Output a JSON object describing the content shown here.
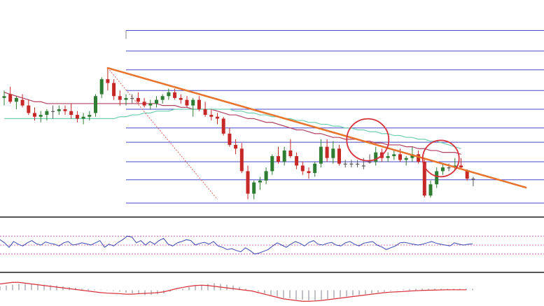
{
  "colors": {
    "background": "#ffffff",
    "bull_candle": "#2e7d32",
    "bear_candle": "#c62828",
    "doji_candle": "#555555",
    "trendline": "#e8732a",
    "fib_lines": "#4848c8",
    "ma_slow": "#b04060",
    "ma_fast": "#6fcfb0",
    "fib_trend": "#e06060",
    "circle": "#d8303a",
    "rsi_line": "#3a48b0",
    "rsi_levels": "#cc44aa",
    "macd_histogram": "#c0c0c8",
    "macd_signal": "#d8303a",
    "panel_divider": "#555555"
  },
  "chart_data": [
    {
      "type": "candlestick",
      "panel": "price",
      "title": "",
      "xlabel": "",
      "ylabel": "",
      "grid": false,
      "ylim": [
        0,
        100
      ],
      "candles": [
        {
          "o": 56,
          "h": 60,
          "l": 52,
          "c": 57
        },
        {
          "o": 58,
          "h": 62,
          "l": 53,
          "c": 54
        },
        {
          "o": 54,
          "h": 57,
          "l": 50,
          "c": 56
        },
        {
          "o": 55,
          "h": 58,
          "l": 51,
          "c": 52
        },
        {
          "o": 52,
          "h": 55,
          "l": 47,
          "c": 48
        },
        {
          "o": 48,
          "h": 51,
          "l": 44,
          "c": 46
        },
        {
          "o": 46,
          "h": 49,
          "l": 43,
          "c": 47
        },
        {
          "o": 47,
          "h": 50,
          "l": 44,
          "c": 49
        },
        {
          "o": 49,
          "h": 52,
          "l": 45,
          "c": 49
        },
        {
          "o": 49,
          "h": 52,
          "l": 47,
          "c": 50
        },
        {
          "o": 50,
          "h": 52,
          "l": 47,
          "c": 49
        },
        {
          "o": 49,
          "h": 53,
          "l": 45,
          "c": 47
        },
        {
          "o": 47,
          "h": 49,
          "l": 43,
          "c": 45
        },
        {
          "o": 45,
          "h": 48,
          "l": 42,
          "c": 46
        },
        {
          "o": 46,
          "h": 49,
          "l": 44,
          "c": 47
        },
        {
          "o": 48,
          "h": 58,
          "l": 46,
          "c": 57
        },
        {
          "o": 58,
          "h": 67,
          "l": 56,
          "c": 66
        },
        {
          "o": 66,
          "h": 72,
          "l": 60,
          "c": 64
        },
        {
          "o": 64,
          "h": 66,
          "l": 55,
          "c": 57
        },
        {
          "o": 57,
          "h": 60,
          "l": 52,
          "c": 55
        },
        {
          "o": 55,
          "h": 58,
          "l": 52,
          "c": 56
        },
        {
          "o": 56,
          "h": 58,
          "l": 53,
          "c": 56
        },
        {
          "o": 56,
          "h": 59,
          "l": 53,
          "c": 54
        },
        {
          "o": 54,
          "h": 56,
          "l": 51,
          "c": 52
        },
        {
          "o": 52,
          "h": 55,
          "l": 50,
          "c": 53
        },
        {
          "o": 53,
          "h": 57,
          "l": 51,
          "c": 55
        },
        {
          "o": 55,
          "h": 58,
          "l": 53,
          "c": 57
        },
        {
          "o": 57,
          "h": 61,
          "l": 55,
          "c": 59
        },
        {
          "o": 59,
          "h": 61,
          "l": 55,
          "c": 56
        },
        {
          "o": 56,
          "h": 58,
          "l": 53,
          "c": 55
        },
        {
          "o": 55,
          "h": 57,
          "l": 51,
          "c": 52
        },
        {
          "o": 52,
          "h": 56,
          "l": 46,
          "c": 55
        },
        {
          "o": 55,
          "h": 57,
          "l": 49,
          "c": 50
        },
        {
          "o": 50,
          "h": 54,
          "l": 46,
          "c": 47
        },
        {
          "o": 47,
          "h": 50,
          "l": 44,
          "c": 46
        },
        {
          "o": 46,
          "h": 48,
          "l": 42,
          "c": 45
        },
        {
          "o": 45,
          "h": 46,
          "l": 36,
          "c": 37
        },
        {
          "o": 37,
          "h": 40,
          "l": 30,
          "c": 31
        },
        {
          "o": 31,
          "h": 34,
          "l": 26,
          "c": 29
        },
        {
          "o": 29,
          "h": 32,
          "l": 16,
          "c": 17
        },
        {
          "o": 17,
          "h": 20,
          "l": 2,
          "c": 5
        },
        {
          "o": 5,
          "h": 12,
          "l": 2,
          "c": 11
        },
        {
          "o": 11,
          "h": 14,
          "l": 7,
          "c": 12
        },
        {
          "o": 12,
          "h": 19,
          "l": 10,
          "c": 17
        },
        {
          "o": 17,
          "h": 26,
          "l": 15,
          "c": 25
        },
        {
          "o": 25,
          "h": 30,
          "l": 21,
          "c": 22
        },
        {
          "o": 22,
          "h": 30,
          "l": 20,
          "c": 28
        },
        {
          "o": 28,
          "h": 34,
          "l": 24,
          "c": 25
        },
        {
          "o": 25,
          "h": 27,
          "l": 18,
          "c": 20
        },
        {
          "o": 20,
          "h": 22,
          "l": 15,
          "c": 17
        },
        {
          "o": 17,
          "h": 19,
          "l": 13,
          "c": 16
        },
        {
          "o": 16,
          "h": 22,
          "l": 14,
          "c": 21
        },
        {
          "o": 21,
          "h": 34,
          "l": 19,
          "c": 30
        },
        {
          "o": 30,
          "h": 34,
          "l": 22,
          "c": 24
        },
        {
          "o": 24,
          "h": 33,
          "l": 21,
          "c": 29
        },
        {
          "o": 29,
          "h": 31,
          "l": 20,
          "c": 21
        },
        {
          "o": 21,
          "h": 23,
          "l": 19,
          "c": 21
        },
        {
          "o": 21,
          "h": 23,
          "l": 19,
          "c": 21
        },
        {
          "o": 21,
          "h": 23,
          "l": 19,
          "c": 21
        },
        {
          "o": 20,
          "h": 24,
          "l": 18,
          "c": 20
        },
        {
          "o": 22,
          "h": 26,
          "l": 21,
          "c": 22
        },
        {
          "o": 22,
          "h": 30,
          "l": 20,
          "c": 27
        },
        {
          "o": 27,
          "h": 29,
          "l": 22,
          "c": 24
        },
        {
          "o": 24,
          "h": 27,
          "l": 22,
          "c": 25
        },
        {
          "o": 25,
          "h": 28,
          "l": 23,
          "c": 26
        },
        {
          "o": 26,
          "h": 29,
          "l": 22,
          "c": 23
        },
        {
          "o": 23,
          "h": 25,
          "l": 20,
          "c": 24
        },
        {
          "o": 24,
          "h": 30,
          "l": 22,
          "c": 26
        },
        {
          "o": 26,
          "h": 28,
          "l": 21,
          "c": 22
        },
        {
          "o": 22,
          "h": 24,
          "l": 3,
          "c": 4
        },
        {
          "o": 4,
          "h": 12,
          "l": 3,
          "c": 10
        },
        {
          "o": 10,
          "h": 19,
          "l": 8,
          "c": 17
        },
        {
          "o": 17,
          "h": 21,
          "l": 15,
          "c": 19
        },
        {
          "o": 19,
          "h": 21,
          "l": 17,
          "c": 19
        },
        {
          "o": 19,
          "h": 24,
          "l": 18,
          "c": 20
        },
        {
          "o": 20,
          "h": 24,
          "l": 18,
          "c": 19
        },
        {
          "o": 17,
          "h": 18,
          "l": 12,
          "c": 13
        },
        {
          "o": 13,
          "h": 14,
          "l": 9,
          "c": 13
        }
      ],
      "series": [
        {
          "kind": "moving-average",
          "color_key": "ma_slow",
          "values": [
            59,
            58,
            57,
            56,
            55,
            54,
            54,
            53,
            53,
            53,
            53,
            53,
            53,
            53,
            53,
            53,
            53,
            53,
            53,
            53,
            53,
            53,
            53,
            53,
            53,
            53,
            52,
            52,
            52,
            51,
            51,
            50,
            50,
            50,
            50,
            49,
            48,
            47,
            47,
            46,
            45,
            45,
            44,
            43,
            43,
            42,
            41,
            40,
            39,
            39,
            38,
            37,
            37,
            36,
            35,
            35,
            34,
            34,
            34,
            33,
            33,
            32,
            32,
            31,
            31,
            31,
            30,
            30,
            29,
            29,
            28,
            28,
            27,
            27,
            27,
            26
          ]
        },
        {
          "kind": "moving-average",
          "color_key": "ma_fast",
          "values": [
            45,
            45,
            45,
            45,
            45,
            45,
            45,
            45,
            45,
            45,
            45,
            45,
            45,
            45,
            45,
            45,
            45,
            45,
            45,
            46,
            46,
            47,
            47,
            48,
            48,
            49,
            49,
            49,
            50,
            50,
            50,
            50,
            50,
            50,
            50,
            50,
            50,
            50,
            49,
            49,
            48,
            48,
            47,
            47,
            46,
            46,
            45,
            45,
            44,
            44,
            43,
            43,
            42,
            42,
            41,
            41,
            40,
            40,
            39,
            39,
            38,
            38,
            37,
            37,
            36,
            36,
            35,
            35,
            34,
            34,
            33,
            33,
            32,
            31,
            30,
            29
          ]
        }
      ],
      "trendline": {
        "start": {
          "index": 17,
          "value": 72
        },
        "end": {
          "index": 76,
          "value": 12
        }
      },
      "fib_levels": [
        0,
        12.4,
        22,
        32.4,
        40,
        50,
        60,
        71,
        81,
        92
      ],
      "fib_diagonal": {
        "start": {
          "index": 17,
          "value": 72
        },
        "end": {
          "index": 35,
          "value": 2
        }
      },
      "circled_points": [
        {
          "index": 59,
          "value": 30
        },
        {
          "index": 71,
          "value": 20
        }
      ]
    },
    {
      "type": "line",
      "panel": "rsi",
      "title": "",
      "grid": false,
      "ylim": [
        0,
        100
      ],
      "levels": [
        70,
        50,
        30
      ],
      "values": [
        62,
        55,
        45,
        58,
        52,
        48,
        55,
        60,
        53,
        50,
        57,
        54,
        52,
        48,
        55,
        58,
        50,
        52,
        55,
        53,
        50,
        55,
        60,
        45,
        52,
        48,
        56,
        62,
        70,
        68,
        55,
        60,
        50,
        58,
        52,
        60,
        65,
        52,
        48,
        55,
        58,
        62,
        60,
        50,
        54,
        56,
        52,
        58,
        48,
        45,
        40,
        42,
        38,
        35,
        44,
        38,
        30,
        32,
        36,
        40,
        48,
        55,
        50,
        45,
        52,
        58,
        54,
        48,
        56,
        60,
        52,
        50,
        54,
        56,
        50,
        48,
        55,
        58,
        52,
        48,
        54,
        56,
        58,
        50,
        46,
        40,
        44,
        48,
        55,
        56,
        54,
        52,
        50,
        52,
        55,
        58,
        54,
        52,
        50,
        48,
        55,
        52,
        50,
        52,
        53
      ]
    },
    {
      "type": "bar",
      "panel": "macd",
      "title": "",
      "grid": false,
      "ylim": [
        -10,
        10
      ],
      "histogram": [
        2.5,
        3,
        3.5,
        4,
        4,
        4,
        3.8,
        3.5,
        3.2,
        3,
        2.5,
        2,
        1.5,
        1,
        0.8,
        0.5,
        0.3,
        0,
        -0.5,
        -1,
        -1.5,
        -2,
        -2.5,
        -3,
        -3,
        -2.5,
        -2,
        -1,
        0,
        1,
        2,
        3,
        3.5,
        4,
        4.5,
        4,
        3.5,
        3,
        2,
        1,
        0,
        -1,
        -2,
        -3,
        -4,
        -5,
        -5,
        -6,
        -6,
        -6.5,
        -6.5,
        -6,
        -5.5,
        -5,
        -4.5,
        -4,
        -3.5,
        -3,
        -2.5,
        -2,
        -1.5,
        -1,
        -0.5,
        0,
        0.5,
        0.8,
        1,
        1,
        1,
        1,
        1,
        1,
        1,
        1,
        1,
        1
      ],
      "signal": [
        4,
        4.5,
        5,
        5,
        4.5,
        4,
        3.5,
        3,
        2.5,
        2,
        1.5,
        1,
        0.5,
        0,
        -0.5,
        -1,
        -1.5,
        -1.8,
        -2,
        -2.2,
        -2.5,
        -2.5,
        -2.2,
        -2,
        -1.8,
        -1.5,
        -1,
        0,
        1,
        1.8,
        2.5,
        3,
        3.2,
        3,
        2.5,
        2,
        1.5,
        1,
        0.5,
        0,
        -0.5,
        -1.5,
        -2.5,
        -3.5,
        -4.5,
        -5.5,
        -6,
        -6.5,
        -7,
        -7,
        -6.8,
        -6.5,
        -6,
        -5.5,
        -5,
        -4.5,
        -4,
        -3.5,
        -3,
        -2.5,
        -2,
        -1.5,
        -1.2,
        -1,
        -0.8,
        -0.5,
        -0.3,
        -0.1,
        0,
        0.1,
        0.2,
        0.3,
        0.3,
        0.3,
        0.3
      ]
    }
  ]
}
